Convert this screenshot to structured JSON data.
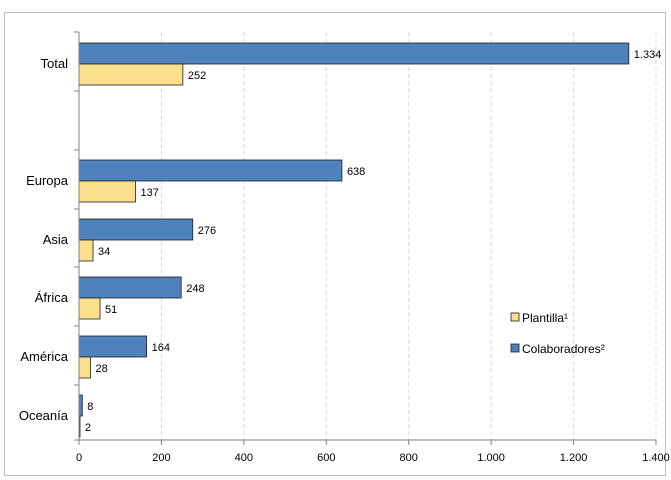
{
  "chart_data": {
    "type": "bar",
    "orientation": "horizontal",
    "categories": [
      "Total",
      "Europa",
      "Asia",
      "África",
      "América",
      "Oceanía"
    ],
    "series": [
      {
        "name": "Colaboradores²",
        "values": [
          1334,
          638,
          276,
          248,
          164,
          8
        ],
        "labels": [
          "1.334",
          "638",
          "276",
          "248",
          "164",
          "8"
        ],
        "color": "#4f81bd"
      },
      {
        "name": "Plantilla¹",
        "values": [
          252,
          137,
          34,
          51,
          28,
          2
        ],
        "labels": [
          "252",
          "137",
          "34",
          "51",
          "28",
          "2"
        ],
        "color": "#fcdf8d"
      }
    ],
    "xlim": [
      0,
      1400
    ],
    "xticks": [
      {
        "value": 0,
        "label": "0"
      },
      {
        "value": 200,
        "label": "200"
      },
      {
        "value": 400,
        "label": "400"
      },
      {
        "value": 600,
        "label": "600"
      },
      {
        "value": 800,
        "label": "800"
      },
      {
        "value": 1000,
        "label": "1.000"
      },
      {
        "value": 1200,
        "label": "1.200"
      },
      {
        "value": 1400,
        "label": "1.400"
      }
    ],
    "grid": true,
    "legend": {
      "position": "right",
      "entries": [
        {
          "label": "Plantilla¹",
          "color": "#fcdf8d"
        },
        {
          "label": "Colaboradores²",
          "color": "#4f81bd"
        }
      ]
    }
  }
}
